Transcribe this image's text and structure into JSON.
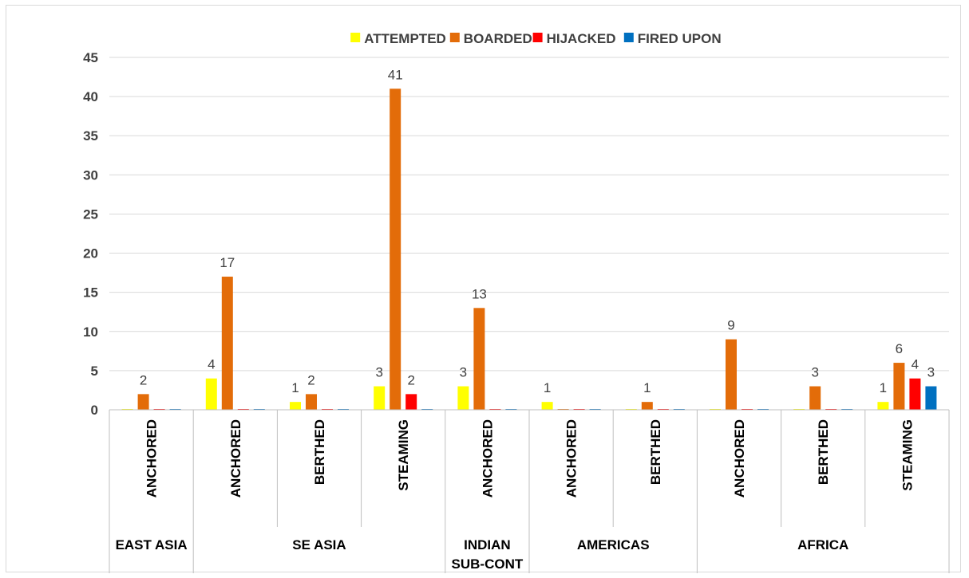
{
  "chart_data": {
    "type": "bar",
    "title": "",
    "xlabel": "",
    "ylabel": "",
    "ylim": [
      0,
      45
    ],
    "yticks": [
      0,
      5,
      10,
      15,
      20,
      25,
      30,
      35,
      40,
      45
    ],
    "grid": true,
    "legend_position": "top",
    "groups": [
      {
        "label": "EAST ASIA",
        "categories": [
          "ANCHORED"
        ]
      },
      {
        "label": "SE ASIA",
        "categories": [
          "ANCHORED",
          "BERTHED",
          "STEAMING"
        ]
      },
      {
        "label": "INDIAN SUB-CONT",
        "categories": [
          "ANCHORED"
        ]
      },
      {
        "label": "AMERICAS",
        "categories": [
          "ANCHORED",
          "BERTHED"
        ]
      },
      {
        "label": "AFRICA",
        "categories": [
          "ANCHORED",
          "BERTHED",
          "STEAMING"
        ]
      }
    ],
    "categories": [
      "ANCHORED",
      "ANCHORED",
      "BERTHED",
      "STEAMING",
      "ANCHORED",
      "ANCHORED",
      "BERTHED",
      "ANCHORED",
      "BERTHED",
      "STEAMING"
    ],
    "series": [
      {
        "name": "ATTEMPTED",
        "color": "#ffff00",
        "values": [
          0,
          4,
          1,
          3,
          3,
          1,
          0,
          0,
          0,
          1
        ]
      },
      {
        "name": "BOARDED",
        "color": "#e36c09",
        "values": [
          2,
          17,
          2,
          41,
          13,
          0,
          1,
          9,
          3,
          6
        ]
      },
      {
        "name": "HIJACKED",
        "color": "#ff0000",
        "values": [
          0,
          0,
          0,
          2,
          0,
          0,
          0,
          0,
          0,
          4
        ]
      },
      {
        "name": "FIRED UPON",
        "color": "#0070c0",
        "values": [
          0,
          0,
          0,
          0,
          0,
          0,
          0,
          0,
          0,
          3
        ]
      }
    ]
  }
}
